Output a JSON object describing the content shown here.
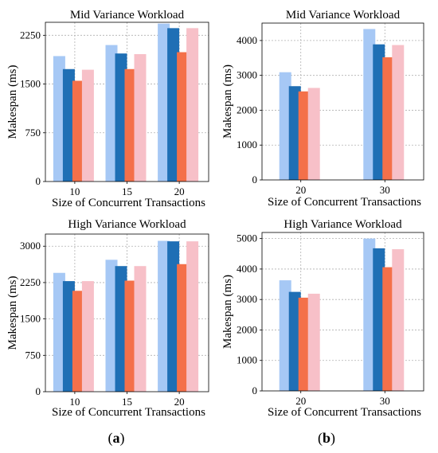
{
  "chart_data": [
    {
      "type": "bar",
      "title": "Mid Variance Workload",
      "xlabel": "Size of Concurrent Transactions",
      "ylabel": "Makespan (ms)",
      "categories": [
        "10",
        "15",
        "20"
      ],
      "yticks": [
        "0",
        "750",
        "1500",
        "2250"
      ],
      "ylim": [
        0,
        2450
      ],
      "grid": true,
      "series": [
        {
          "values": [
            1930,
            2100,
            2430
          ],
          "color": "#a6c8f5"
        },
        {
          "values": [
            1730,
            1970,
            2360
          ],
          "color": "#1f6fb5"
        },
        {
          "values": [
            1550,
            1730,
            1990
          ],
          "color": "#f4704a"
        },
        {
          "values": [
            1720,
            1960,
            2360
          ],
          "color": "#f7c0c8"
        }
      ]
    },
    {
      "type": "bar",
      "title": "Mid Variance Workload",
      "xlabel": "Size of Concurrent Transactions",
      "ylabel": "Makespan (ms)",
      "categories": [
        "20",
        "30"
      ],
      "yticks": [
        "0",
        "1000",
        "2000",
        "3000",
        "4000"
      ],
      "ylim": [
        0,
        4500
      ],
      "grid": true,
      "series": [
        {
          "values": [
            3090,
            4330
          ],
          "color": "#a6c8f5"
        },
        {
          "values": [
            2690,
            3890
          ],
          "color": "#1f6fb5"
        },
        {
          "values": [
            2540,
            3520
          ],
          "color": "#f4704a"
        },
        {
          "values": [
            2640,
            3870
          ],
          "color": "#f7c0c8"
        }
      ]
    },
    {
      "type": "bar",
      "title": "High Variance Workload",
      "xlabel": "Size of Concurrent Transactions",
      "ylabel": "Makespan (ms)",
      "categories": [
        "10",
        "15",
        "20"
      ],
      "yticks": [
        "0",
        "750",
        "1500",
        "2250",
        "3000"
      ],
      "ylim": [
        0,
        3250
      ],
      "grid": true,
      "series": [
        {
          "values": [
            2450,
            2720,
            3110
          ],
          "color": "#a6c8f5"
        },
        {
          "values": [
            2280,
            2590,
            3100
          ],
          "color": "#1f6fb5"
        },
        {
          "values": [
            2080,
            2290,
            2630
          ],
          "color": "#f4704a"
        },
        {
          "values": [
            2280,
            2590,
            3100
          ],
          "color": "#f7c0c8"
        }
      ]
    },
    {
      "type": "bar",
      "title": "High Variance Workload",
      "xlabel": "Size of Concurrent Transactions",
      "ylabel": "Makespan (ms)",
      "categories": [
        "20",
        "30"
      ],
      "yticks": [
        "0",
        "1000",
        "2000",
        "3000",
        "4000",
        "5000"
      ],
      "ylim": [
        0,
        5200
      ],
      "grid": true,
      "series": [
        {
          "values": [
            3630,
            5000
          ],
          "color": "#a6c8f5"
        },
        {
          "values": [
            3250,
            4680
          ],
          "color": "#1f6fb5"
        },
        {
          "values": [
            3060,
            4060
          ],
          "color": "#f4704a"
        },
        {
          "values": [
            3190,
            4650
          ],
          "color": "#f7c0c8"
        }
      ]
    }
  ],
  "captions": {
    "a": {
      "open": "(",
      "letter": "a",
      "close": ")"
    },
    "b": {
      "open": "(",
      "letter": "b",
      "close": ")"
    }
  }
}
